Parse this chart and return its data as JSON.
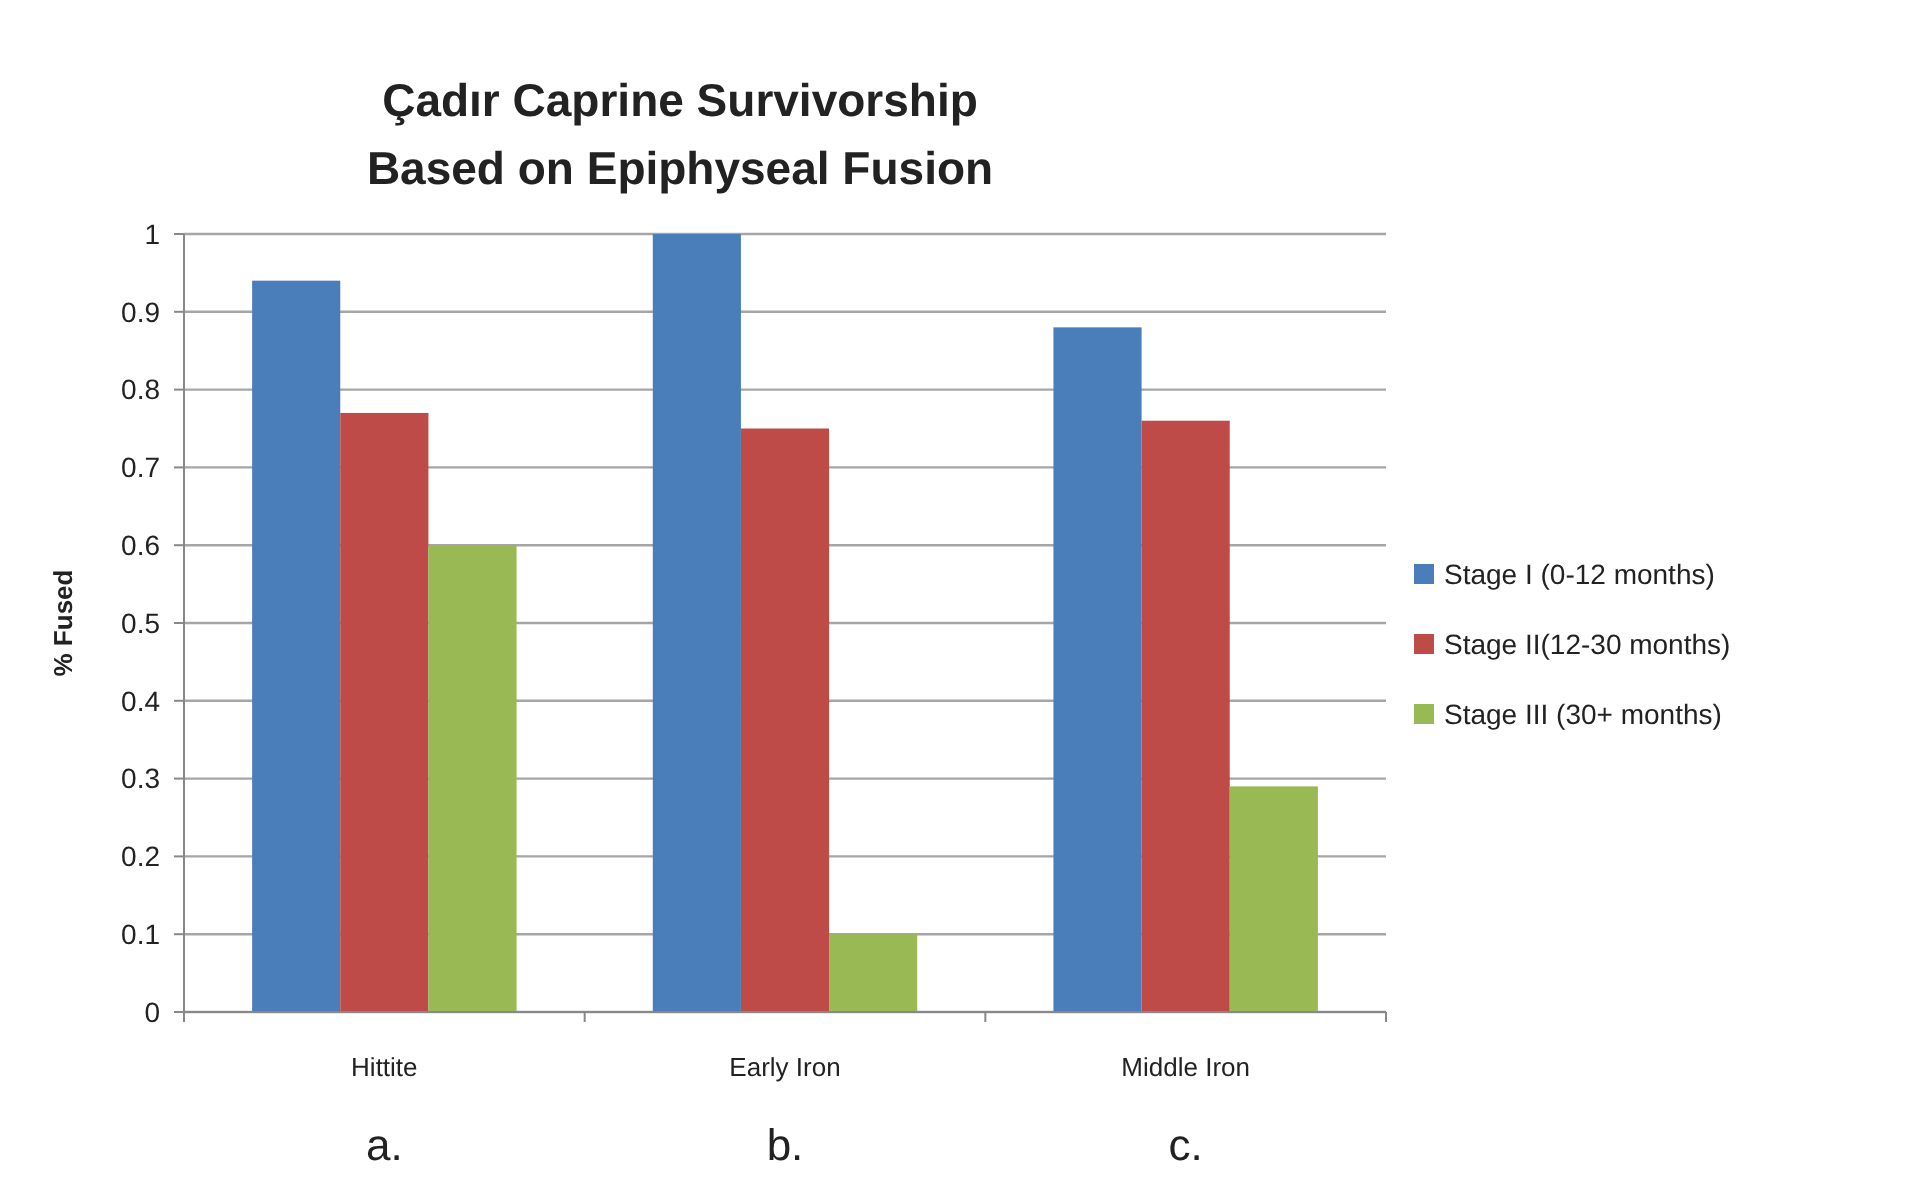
{
  "chart_data": {
    "type": "bar",
    "title": "Çadır Caprine Survivorship\nBased on Epiphyseal Fusion",
    "ylabel": "% Fused",
    "categories": [
      "Hittite",
      "Early Iron",
      "Middle Iron"
    ],
    "series": [
      {
        "name": "Stage I (0-12 months)",
        "color": "#4a7ebb",
        "values": [
          0.94,
          1.0,
          0.88
        ]
      },
      {
        "name": "Stage II(12-30 months)",
        "color": "#be4b48",
        "values": [
          0.77,
          0.75,
          0.76
        ]
      },
      {
        "name": "Stage III (30+ months)",
        "color": "#98b954",
        "values": [
          0.6,
          0.1,
          0.29
        ]
      }
    ],
    "ylim": [
      0,
      1
    ],
    "yticks": [
      0,
      0.1,
      0.2,
      0.3,
      0.4,
      0.5,
      0.6,
      0.7,
      0.8,
      0.9,
      1
    ],
    "grid": "y",
    "legend": "right",
    "annotations": [
      "a.",
      "b.",
      "c."
    ]
  }
}
